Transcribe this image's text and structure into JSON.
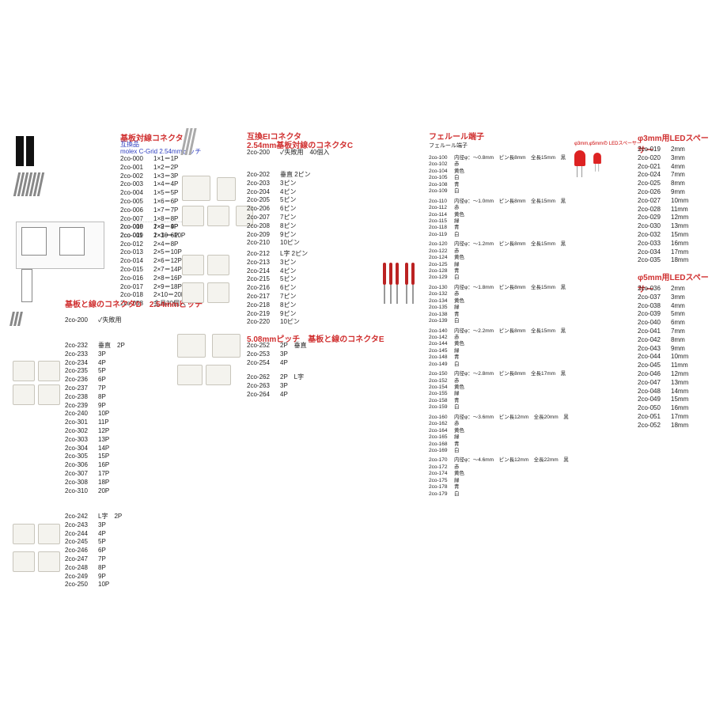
{
  "col1": {
    "h1": "基板対線コネクタ",
    "sub1": "互換品",
    "sub2": "molex C-Grid 2.54mmピッチ",
    "a": [
      [
        "2co-000",
        "1×1＝1P"
      ],
      [
        "2co-001",
        "1×2＝2P"
      ],
      [
        "2co-002",
        "1×3＝3P"
      ],
      [
        "2co-003",
        "1×4＝4P"
      ],
      [
        "2co-004",
        "1×5＝5P"
      ],
      [
        "2co-005",
        "1×6＝6P"
      ],
      [
        "2co-006",
        "1×7＝7P"
      ],
      [
        "2co-007",
        "1×8＝8P"
      ],
      [
        "2co-008",
        "1×9＝9P"
      ],
      [
        "2co-009",
        "1×10＝10P"
      ]
    ],
    "b": [
      [
        "2co-010",
        "2×2＝4P"
      ],
      [
        "2co-011",
        "2×3＝6P"
      ],
      [
        "2co-012",
        "2×4＝8P"
      ],
      [
        "2co-013",
        "2×5＝10P"
      ],
      [
        "2co-014",
        "2×6＝12P"
      ],
      [
        "2co-015",
        "2×7＝14P"
      ],
      [
        "2co-016",
        "2×8＝16P"
      ],
      [
        "2co-017",
        "2×9＝18P"
      ],
      [
        "2co-018",
        "2×10＝20P"
      ],
      [
        "2co-058",
        "金具30個入"
      ]
    ],
    "h2": "基板と線のコネクタD　2.54mmピッチ",
    "c200": [
      "2co-200",
      "✓失敗用"
    ],
    "c": [
      [
        "2co-232",
        "垂直　2P"
      ],
      [
        "2co-233",
        "3P"
      ],
      [
        "2co-234",
        "4P"
      ],
      [
        "2co-235",
        "5P"
      ],
      [
        "2co-236",
        "6P"
      ],
      [
        "2co-237",
        "7P"
      ],
      [
        "2co-238",
        "8P"
      ],
      [
        "2co-239",
        "9P"
      ],
      [
        "2co-240",
        "10P"
      ],
      [
        "2co-301",
        "11P"
      ],
      [
        "2co-302",
        "12P"
      ],
      [
        "2co-303",
        "13P"
      ],
      [
        "2co-304",
        "14P"
      ],
      [
        "2co-305",
        "15P"
      ],
      [
        "2co-306",
        "16P"
      ],
      [
        "2co-307",
        "17P"
      ],
      [
        "2co-308",
        "18P"
      ],
      [
        "2co-310",
        "20P"
      ]
    ],
    "d": [
      [
        "2co-242",
        "L字　2P"
      ],
      [
        "2co-243",
        "3P"
      ],
      [
        "2co-244",
        "4P"
      ],
      [
        "2co-245",
        "5P"
      ],
      [
        "2co-246",
        "6P"
      ],
      [
        "2co-247",
        "7P"
      ],
      [
        "2co-248",
        "8P"
      ],
      [
        "2co-249",
        "9P"
      ],
      [
        "2co-250",
        "10P"
      ]
    ]
  },
  "col2": {
    "h1a": "互換EIコネクタ",
    "h1b": "2.54mm基板対線のコネクタC",
    "top": [
      "2co-200",
      "✓失敗用　40個入"
    ],
    "a": [
      [
        "2co-202",
        "垂直 2ピン"
      ],
      [
        "2co-203",
        "3ピン"
      ],
      [
        "2co-204",
        "4ピン"
      ],
      [
        "2co-205",
        "5ピン"
      ],
      [
        "2co-206",
        "6ピン"
      ],
      [
        "2co-207",
        "7ピン"
      ],
      [
        "2co-208",
        "8ピン"
      ],
      [
        "2co-209",
        "9ピン"
      ],
      [
        "2co-210",
        "10ピン"
      ]
    ],
    "b": [
      [
        "2co-212",
        "L字 2ピン"
      ],
      [
        "2co-213",
        "3ピン"
      ],
      [
        "2co-214",
        "4ピン"
      ],
      [
        "2co-215",
        "5ピン"
      ],
      [
        "2co-216",
        "6ピン"
      ],
      [
        "2co-217",
        "7ピン"
      ],
      [
        "2co-218",
        "8ピン"
      ],
      [
        "2co-219",
        "9ピン"
      ],
      [
        "2co-220",
        "10ピン"
      ]
    ],
    "h2": "5.08mmピッチ　基板と線のコネクタE",
    "c": [
      [
        "2co-252",
        "2P　垂直"
      ],
      [
        "2co-253",
        "3P"
      ],
      [
        "2co-254",
        "4P"
      ]
    ],
    "d": [
      [
        "2co-262",
        "2P　L字"
      ],
      [
        "2co-263",
        "3P"
      ],
      [
        "2co-264",
        "4P"
      ]
    ]
  },
  "col3": {
    "h1": "フェルール端子",
    "sub": "フェルール端子",
    "groups": [
      {
        "hdr": [
          "2co-100",
          "内径φ：～0.8mm　ピン長8mm　全長15mm　黒"
        ],
        "rows": [
          [
            "2co-102",
            "赤"
          ],
          [
            "2co-104",
            "黄色"
          ],
          [
            "2co-105",
            "白"
          ],
          [
            "2co-108",
            "青"
          ],
          [
            "2co-109",
            "白"
          ]
        ]
      },
      {
        "hdr": [
          "2co-110",
          "内径φ：～1.0mm　ピン長8mm　全長15mm　黒"
        ],
        "rows": [
          [
            "2co-112",
            "赤"
          ],
          [
            "2co-114",
            "黄色"
          ],
          [
            "2co-115",
            "緑"
          ],
          [
            "2co-118",
            "青"
          ],
          [
            "2co-119",
            "白"
          ]
        ]
      },
      {
        "hdr": [
          "2co-120",
          "内径φ：～1.2mm　ピン長8mm　全長15mm　黒"
        ],
        "rows": [
          [
            "2co-122",
            "赤"
          ],
          [
            "2co-124",
            "黄色"
          ],
          [
            "2co-125",
            "緑"
          ],
          [
            "2co-128",
            "青"
          ],
          [
            "2co-129",
            "白"
          ]
        ]
      },
      {
        "hdr": [
          "2co-130",
          "内径φ：～1.8mm　ピン長8mm　全長15mm　黒"
        ],
        "rows": [
          [
            "2co-132",
            "赤"
          ],
          [
            "2co-134",
            "黄色"
          ],
          [
            "2co-135",
            "緑"
          ],
          [
            "2co-138",
            "青"
          ],
          [
            "2co-139",
            "白"
          ]
        ]
      },
      {
        "hdr": [
          "2co-140",
          "内径φ：～2.2mm　ピン長8mm　全長15mm　黒"
        ],
        "rows": [
          [
            "2co-142",
            "赤"
          ],
          [
            "2co-144",
            "黄色"
          ],
          [
            "2co-145",
            "緑"
          ],
          [
            "2co-148",
            "青"
          ],
          [
            "2co-149",
            "白"
          ]
        ]
      },
      {
        "hdr": [
          "2co-150",
          "内径φ：～2.8mm　ピン長8mm　全長17mm　黒"
        ],
        "rows": [
          [
            "2co-152",
            "赤"
          ],
          [
            "2co-154",
            "黄色"
          ],
          [
            "2co-155",
            "緑"
          ],
          [
            "2co-158",
            "青"
          ],
          [
            "2co-159",
            "白"
          ]
        ]
      },
      {
        "hdr": [
          "2co-160",
          "内径φ：～3.6mm　ピン長12mm　全長20mm　黒"
        ],
        "rows": [
          [
            "2co-162",
            "赤"
          ],
          [
            "2co-164",
            "黄色"
          ],
          [
            "2co-165",
            "緑"
          ],
          [
            "2co-168",
            "青"
          ],
          [
            "2co-169",
            "白"
          ]
        ]
      },
      {
        "hdr": [
          "2co-170",
          "内径φ：～4.6mm　ピン長12mm　全長22mm　黒"
        ],
        "rows": [
          [
            "2co-172",
            "赤"
          ],
          [
            "2co-174",
            "黄色"
          ],
          [
            "2co-175",
            "緑"
          ],
          [
            "2co-178",
            "青"
          ],
          [
            "2co-179",
            "白"
          ]
        ]
      }
    ]
  },
  "col4": {
    "h1": "φ3mm用LEDスペーサー",
    "note": "φ3mm,φ5mmの LEDスペーサー",
    "a": [
      [
        "2co-019",
        "2mm"
      ],
      [
        "2co-020",
        "3mm"
      ],
      [
        "2co-021",
        "4mm"
      ],
      [
        "2co-024",
        "7mm"
      ],
      [
        "2co-025",
        "8mm"
      ],
      [
        "2co-026",
        "9mm"
      ],
      [
        "2co-027",
        "10mm"
      ],
      [
        "2co-028",
        "11mm"
      ],
      [
        "2co-029",
        "12mm"
      ],
      [
        "2co-030",
        "13mm"
      ],
      [
        "2co-032",
        "15mm"
      ],
      [
        "2co-033",
        "16mm"
      ],
      [
        "2co-034",
        "17mm"
      ],
      [
        "2co-035",
        "18mm"
      ]
    ],
    "h2": "φ5mm用LEDスペーサー",
    "b": [
      [
        "2co-036",
        "2mm"
      ],
      [
        "2co-037",
        "3mm"
      ],
      [
        "2co-038",
        "4mm"
      ],
      [
        "2co-039",
        "5mm"
      ],
      [
        "2co-040",
        "6mm"
      ],
      [
        "2co-041",
        "7mm"
      ],
      [
        "2co-042",
        "8mm"
      ],
      [
        "2co-043",
        "9mm"
      ],
      [
        "2co-044",
        "10mm"
      ],
      [
        "2co-045",
        "11mm"
      ],
      [
        "2co-046",
        "12mm"
      ],
      [
        "2co-047",
        "13mm"
      ],
      [
        "2co-048",
        "14mm"
      ],
      [
        "2co-049",
        "15mm"
      ],
      [
        "2co-050",
        "16mm"
      ],
      [
        "2co-051",
        "17mm"
      ],
      [
        "2co-052",
        "18mm"
      ]
    ]
  }
}
